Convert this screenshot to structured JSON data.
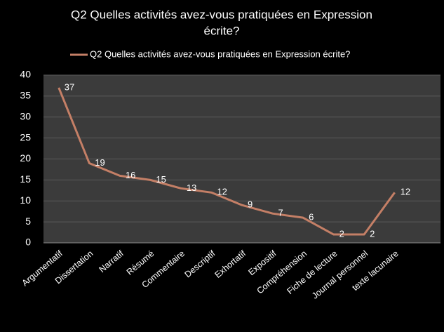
{
  "chart_data": {
    "type": "line",
    "title": [
      "Q2 Quelles activités avez-vous pratiquées en Expression",
      "écrite?"
    ],
    "categories": [
      "Argumentatif",
      "Dissertation",
      "Narratif",
      "Résumé",
      "Commentaire",
      "Descriptif",
      "Exhortatif",
      "Expositif",
      "Compréhension",
      "Fiche de lecture",
      "Journal personnel",
      "texte lacunaire"
    ],
    "series": [
      {
        "name": "Q2 Quelles activités avez-vous pratiquées en Expression écrite?",
        "color": "#c47f66",
        "values": [
          37,
          19,
          16,
          15,
          13,
          12,
          9,
          7,
          6,
          2,
          2,
          12
        ]
      }
    ],
    "ylim": [
      0,
      40
    ],
    "yticks": [
      0,
      5,
      10,
      15,
      20,
      25,
      30,
      35,
      40
    ],
    "grid": true,
    "data_labels": true
  }
}
